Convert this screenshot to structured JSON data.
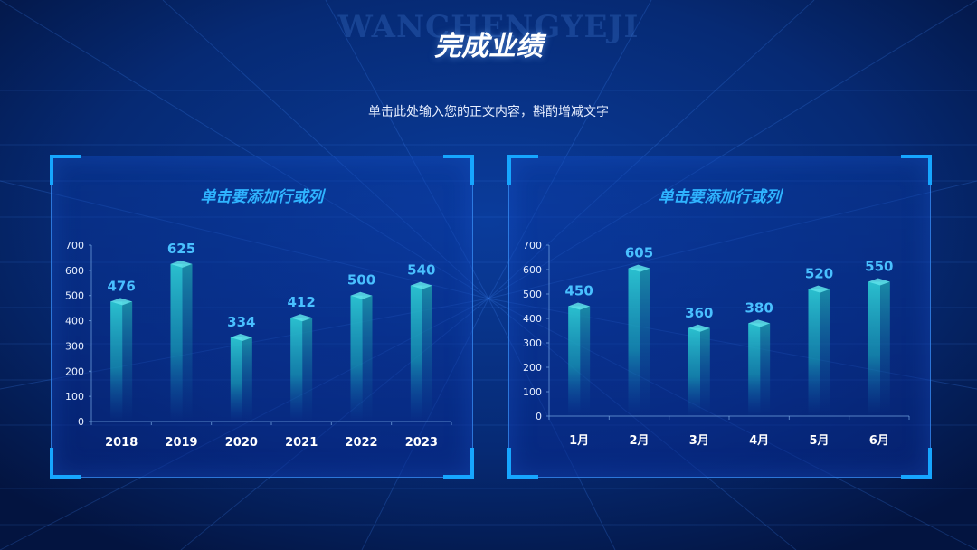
{
  "watermark": "WANCHENGYEJI",
  "title": "完成业绩",
  "subtitle": "单击此处输入您的正文内容，斟酌增减文字",
  "colors": {
    "background": "#041a4a",
    "accent": "#16a6ff",
    "value_label": "#49c0ff",
    "bar": "#1aa8b4"
  },
  "chart_data": [
    {
      "type": "bar",
      "title": "单击要添加行或列",
      "categories": [
        "2018",
        "2019",
        "2020",
        "2021",
        "2022",
        "2023"
      ],
      "values": [
        476,
        625,
        334,
        412,
        500,
        540
      ],
      "yticks": [
        "0",
        "100",
        "200",
        "300",
        "400",
        "500",
        "600",
        "700"
      ],
      "ylim": [
        0,
        700
      ],
      "xlabel": "",
      "ylabel": "",
      "grid": false
    },
    {
      "type": "bar",
      "title": "单击要添加行或列",
      "categories": [
        "1月",
        "2月",
        "3月",
        "4月",
        "5月",
        "6月"
      ],
      "values": [
        450,
        605,
        360,
        380,
        520,
        550
      ],
      "yticks": [
        "0",
        "100",
        "200",
        "300",
        "400",
        "500",
        "600",
        "700"
      ],
      "ylim": [
        0,
        700
      ],
      "xlabel": "",
      "ylabel": "",
      "grid": false
    }
  ]
}
